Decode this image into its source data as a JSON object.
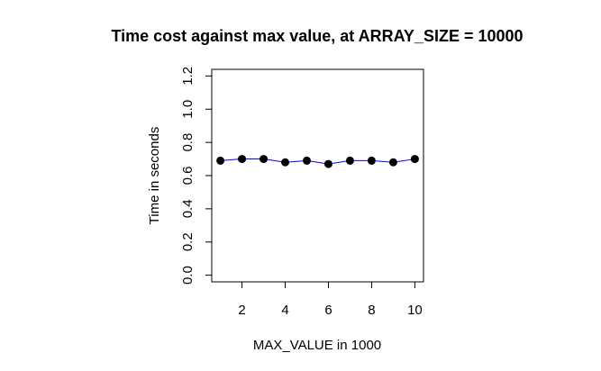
{
  "chart_data": {
    "type": "line",
    "title": "Time cost against max value, at ARRAY_SIZE = 10000",
    "xlabel": "MAX_VALUE in 1000",
    "ylabel": "Time in seconds",
    "x": [
      1,
      2,
      3,
      4,
      5,
      6,
      7,
      8,
      9,
      10
    ],
    "series": [
      {
        "values": [
          0.69,
          0.7,
          0.7,
          0.68,
          0.69,
          0.67,
          0.69,
          0.69,
          0.68,
          0.7
        ],
        "line_color": "#0000ff",
        "marker_color": "#000000"
      }
    ],
    "xlim": [
      0.6,
      10.4
    ],
    "ylim": [
      -0.04,
      1.24
    ],
    "xticks": [
      2,
      4,
      6,
      8,
      10
    ],
    "xtick_labels": [
      "2",
      "4",
      "6",
      "8",
      "10"
    ],
    "yticks": [
      0.0,
      0.2,
      0.4,
      0.6,
      0.8,
      1.0,
      1.2
    ],
    "ytick_labels": [
      "0.0",
      "0.2",
      "0.4",
      "0.6",
      "0.8",
      "1.0",
      "1.2"
    ],
    "grid": false,
    "legend": "none"
  }
}
